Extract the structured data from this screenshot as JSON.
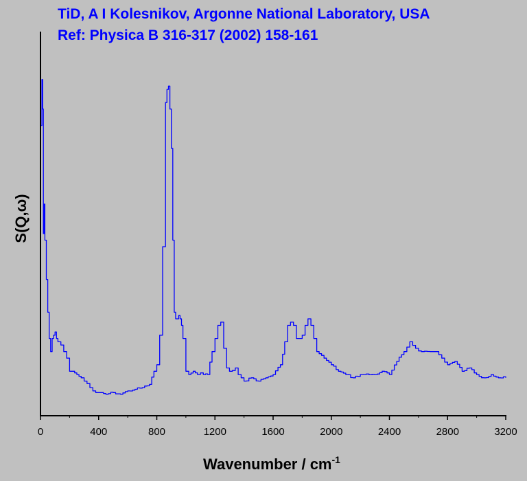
{
  "colors": {
    "background": "#c0c0c0",
    "series": "#0000ff",
    "title": "#0000ff",
    "axis": "#000000"
  },
  "chart_data": {
    "type": "line",
    "title_line1": "TiD, A I Kolesnikov, Argonne National Laboratory, USA",
    "title_line2": "Ref: Physica B 316-317 (2002) 158-161",
    "xlabel": "Wavenumber / cm",
    "xlabel_superscript": "-1",
    "ylabel": "S(Q,ω)",
    "xlim": [
      0,
      3200
    ],
    "ylim": [
      0,
      1
    ],
    "x_ticks": [
      0,
      400,
      800,
      1200,
      1600,
      2000,
      2400,
      2800,
      3200
    ],
    "x_tick_labels": [
      "0",
      "400",
      "800",
      "1200",
      "1600",
      "2000",
      "2400",
      "2800",
      "3200"
    ],
    "y_ticks_shown": false,
    "grid": false,
    "series": [
      {
        "x": [
          5,
          10,
          15,
          20,
          25,
          30,
          40,
          50,
          60,
          70,
          80,
          90,
          100,
          110,
          120,
          140,
          160,
          180,
          200,
          220,
          250,
          280,
          300,
          340,
          360,
          380,
          400,
          450,
          500,
          550,
          600,
          650,
          700,
          750,
          780,
          800,
          820,
          840,
          860,
          870,
          880,
          890,
          900,
          910,
          920,
          930,
          940,
          950,
          960,
          970,
          980,
          1000,
          1020,
          1050,
          1080,
          1100,
          1120,
          1150,
          1180,
          1200,
          1220,
          1240,
          1260,
          1280,
          1300,
          1340,
          1360,
          1380,
          1400,
          1450,
          1500,
          1550,
          1600,
          1650,
          1680,
          1700,
          1720,
          1740,
          1760,
          1780,
          1800,
          1820,
          1840,
          1860,
          1880,
          1900,
          1950,
          2000,
          2050,
          2100,
          2150,
          2200,
          2300,
          2350,
          2400,
          2450,
          2500,
          2540,
          2580,
          2620,
          2680,
          2720,
          2760,
          2800,
          2850,
          2900,
          2950,
          3000,
          3050,
          3100,
          3150,
          3200
        ],
        "y": [
          0.85,
          0.99,
          0.9,
          0.52,
          0.61,
          0.5,
          0.38,
          0.28,
          0.2,
          0.16,
          0.2,
          0.21,
          0.22,
          0.2,
          0.19,
          0.18,
          0.16,
          0.14,
          0.1,
          0.1,
          0.09,
          0.08,
          0.07,
          0.05,
          0.04,
          0.035,
          0.035,
          0.03,
          0.035,
          0.03,
          0.04,
          0.045,
          0.05,
          0.06,
          0.1,
          0.12,
          0.21,
          0.48,
          0.92,
          0.96,
          0.97,
          0.9,
          0.78,
          0.5,
          0.28,
          0.26,
          0.26,
          0.27,
          0.26,
          0.24,
          0.2,
          0.1,
          0.09,
          0.1,
          0.09,
          0.095,
          0.09,
          0.09,
          0.16,
          0.2,
          0.24,
          0.25,
          0.17,
          0.11,
          0.1,
          0.11,
          0.09,
          0.08,
          0.07,
          0.08,
          0.07,
          0.08,
          0.09,
          0.12,
          0.19,
          0.24,
          0.25,
          0.24,
          0.2,
          0.2,
          0.21,
          0.24,
          0.26,
          0.24,
          0.2,
          0.16,
          0.14,
          0.12,
          0.1,
          0.09,
          0.08,
          0.09,
          0.09,
          0.1,
          0.09,
          0.13,
          0.16,
          0.19,
          0.17,
          0.16,
          0.16,
          0.16,
          0.14,
          0.12,
          0.13,
          0.1,
          0.11,
          0.09,
          0.08,
          0.09,
          0.08,
          0.08
        ]
      }
    ]
  }
}
